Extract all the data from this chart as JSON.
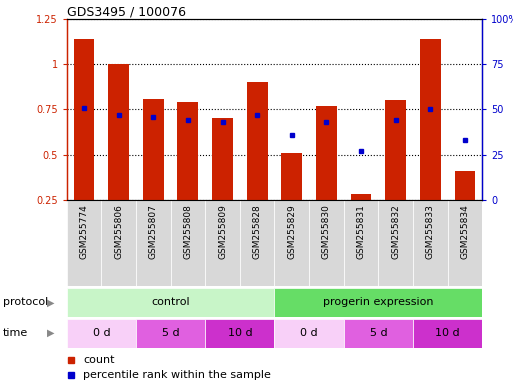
{
  "title": "GDS3495 / 100076",
  "samples": [
    "GSM255774",
    "GSM255806",
    "GSM255807",
    "GSM255808",
    "GSM255809",
    "GSM255828",
    "GSM255829",
    "GSM255830",
    "GSM255831",
    "GSM255832",
    "GSM255833",
    "GSM255834"
  ],
  "red_values": [
    1.14,
    1.0,
    0.81,
    0.79,
    0.7,
    0.9,
    0.51,
    0.77,
    0.28,
    0.8,
    1.14,
    0.41
  ],
  "blue_values": [
    0.76,
    0.72,
    0.71,
    0.69,
    0.68,
    0.72,
    0.61,
    0.68,
    0.52,
    0.69,
    0.75,
    0.58
  ],
  "ylim_left": [
    0.25,
    1.25
  ],
  "ylim_right": [
    0,
    100
  ],
  "yticks_left": [
    0.25,
    0.5,
    0.75,
    1.0,
    1.25
  ],
  "yticks_right": [
    0,
    25,
    50,
    75,
    100
  ],
  "yticklabels_left": [
    "0.25",
    "0.5",
    "0.75",
    "1",
    "1.25"
  ],
  "yticklabels_right": [
    "0",
    "25",
    "50",
    "75",
    "100%"
  ],
  "protocol_control_label": "control",
  "protocol_progerin_label": "progerin expression",
  "protocol_control_color": "#c8f5c8",
  "protocol_progerin_color": "#66dd66",
  "time_colors_list": [
    "#f8d0f8",
    "#e060e0",
    "#cc30cc",
    "#f8d0f8",
    "#e060e0",
    "#cc30cc"
  ],
  "time_labels": [
    "0 d",
    "5 d",
    "10 d",
    "0 d",
    "5 d",
    "10 d"
  ],
  "red_color": "#cc2200",
  "blue_color": "#0000cc",
  "bar_width": 0.6,
  "bg_color": "#ffffff",
  "tick_bg_color": "#d8d8d8",
  "legend_count_label": "count",
  "legend_pct_label": "percentile rank within the sample",
  "title_fontsize": 9,
  "axis_fontsize": 7,
  "label_fontsize": 8
}
